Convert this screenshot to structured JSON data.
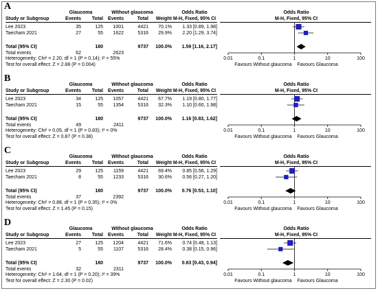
{
  "headers": {
    "study": "Study or Subgroup",
    "group1": "Glaucoma",
    "group2": "Without glaucoma",
    "events": "Events",
    "total": "Total",
    "weight": "Weight",
    "or_title": "Odds Ratio",
    "or_method": "M-H, Fixed, 95% CI"
  },
  "labels": {
    "total_ci": "Total (95% CI)",
    "total_events": "Total events"
  },
  "axis": {
    "ticks": [
      0.01,
      0.1,
      1,
      10,
      100
    ],
    "tick_labels": [
      "0.01",
      "0.1",
      "1",
      "10",
      "100"
    ],
    "left_label": "Favours Without glaucoma",
    "right_label": "Favours Glaucoma"
  },
  "colors": {
    "square": "#1f1fbf",
    "diamond": "#000000"
  },
  "chart_data": [
    {
      "type": "forest",
      "panel": "A",
      "studies": [
        {
          "name": "Lee 2023",
          "e1": "35",
          "t1": "125",
          "e2": "1001",
          "t2": "4421",
          "weight": "70.1%",
          "ci_text": "1.33 [0.89, 1.98]",
          "or": 1.33,
          "lo": 0.89,
          "hi": 1.98
        },
        {
          "name": "Taecham 2021",
          "e1": "27",
          "t1": "55",
          "e2": "1622",
          "t2": "5316",
          "weight": "29.9%",
          "ci_text": "2.20 [1.29, 3.74]",
          "or": 2.2,
          "lo": 1.29,
          "hi": 3.74
        }
      ],
      "total": {
        "t1": "180",
        "t2": "9737",
        "weight": "100.0%",
        "ci_text": "1.59 [1.16, 2.17]",
        "or": 1.59,
        "lo": 1.16,
        "hi": 2.17
      },
      "total_events": {
        "e1": "62",
        "e2": "2623"
      },
      "heterogeneity": "Heterogeneity: Chi² = 2.20, df = 1 (P = 0.14); I² = 55%",
      "overall": "Test for overall effect: Z = 2.88 (P = 0.004)",
      "xscale": "log",
      "xlim": [
        0.01,
        100
      ]
    },
    {
      "type": "forest",
      "panel": "B",
      "studies": [
        {
          "name": "Lee 2023",
          "e1": "34",
          "t1": "125",
          "e2": "1057",
          "t2": "4421",
          "weight": "67.7%",
          "ci_text": "1.19 [0.80, 1.77]",
          "or": 1.19,
          "lo": 0.8,
          "hi": 1.77
        },
        {
          "name": "Taecham 2021",
          "e1": "15",
          "t1": "55",
          "e2": "1354",
          "t2": "5316",
          "weight": "32.3%",
          "ci_text": "1.10 [0.60, 1.98]",
          "or": 1.1,
          "lo": 0.6,
          "hi": 1.98
        }
      ],
      "total": {
        "t1": "180",
        "t2": "9737",
        "weight": "100.0%",
        "ci_text": "1.16 [0.83, 1.62]",
        "or": 1.16,
        "lo": 0.83,
        "hi": 1.62
      },
      "total_events": {
        "e1": "49",
        "e2": "2411"
      },
      "heterogeneity": "Heterogeneity: Chi² = 0.05, df = 1 (P = 0.83); I² = 0%",
      "overall": "Test for overall effect: Z = 0.87 (P = 0.38)",
      "xscale": "log",
      "xlim": [
        0.01,
        100
      ]
    },
    {
      "type": "forest",
      "panel": "C",
      "studies": [
        {
          "name": "Lee 2023",
          "e1": "29",
          "t1": "125",
          "e2": "1159",
          "t2": "4421",
          "weight": "69.4%",
          "ci_text": "0.85 [0.56, 1.29]",
          "or": 0.85,
          "lo": 0.56,
          "hi": 1.29
        },
        {
          "name": "Taecham 2021",
          "e1": "8",
          "t1": "55",
          "e2": "1233",
          "t2": "5316",
          "weight": "30.6%",
          "ci_text": "0.56 [0.27, 1.20]",
          "or": 0.56,
          "lo": 0.27,
          "hi": 1.2
        }
      ],
      "total": {
        "t1": "180",
        "t2": "9737",
        "weight": "100.0%",
        "ci_text": "0.76 [0.53, 1.10]",
        "or": 0.76,
        "lo": 0.53,
        "hi": 1.1
      },
      "total_events": {
        "e1": "37",
        "e2": "2392"
      },
      "heterogeneity": "Heterogeneity: Chi² = 0.88, df = 1 (P = 0.35); I² = 0%",
      "overall": "Test for overall effect: Z = 1.45 (P = 0.15)",
      "xscale": "log",
      "xlim": [
        0.01,
        100
      ]
    },
    {
      "type": "forest",
      "panel": "D",
      "studies": [
        {
          "name": "Lee 2023",
          "e1": "27",
          "t1": "125",
          "e2": "1204",
          "t2": "4421",
          "weight": "71.6%",
          "ci_text": "0.74 [0.48, 1.13]",
          "or": 0.74,
          "lo": 0.48,
          "hi": 1.13
        },
        {
          "name": "Taecham 2021",
          "e1": "5",
          "t1": "55",
          "e2": "1107",
          "t2": "5316",
          "weight": "28.4%",
          "ci_text": "0.38 [0.15, 0.96]",
          "or": 0.38,
          "lo": 0.15,
          "hi": 0.96
        }
      ],
      "total": {
        "t1": "180",
        "t2": "9737",
        "weight": "100.0%",
        "ci_text": "0.63 [0.43, 0.94]",
        "or": 0.63,
        "lo": 0.43,
        "hi": 0.94
      },
      "total_events": {
        "e1": "32",
        "e2": "2311"
      },
      "heterogeneity": "Heterogeneity: Chi² = 1.64, df = 1 (P = 0.20); I² = 39%",
      "overall": "Test for overall effect: Z = 2.30 (P = 0.02)",
      "xscale": "log",
      "xlim": [
        0.01,
        100
      ]
    }
  ]
}
